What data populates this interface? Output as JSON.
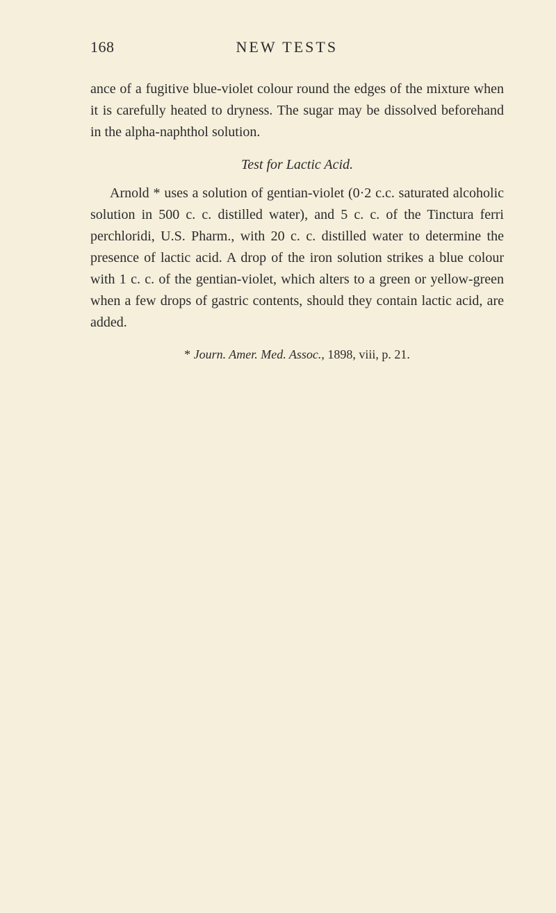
{
  "header": {
    "page_number": "168",
    "title": "NEW TESTS"
  },
  "paragraphs": {
    "p1": "ance of a fugitive blue-violet colour round the edges of the mixture when it is carefully heated to dryness. The sugar may be dissolved beforehand in the alpha-naphthol solution.",
    "section_title": "Test for Lactic Acid.",
    "p2": "Arnold * uses a solution of gentian-violet (0·2 c.c. saturated alcoholic solution in 500 c. c. distilled water), and 5 c. c. of the Tinctura ferri perchloridi, U.S. Pharm., with 20 c. c. distilled water to determine the presence of lactic acid. A drop of the iron solution strikes a blue colour with 1 c. c. of the gentian-violet, which alters to a green or yellow-green when a few drops of gastric contents, should they contain lactic acid, are added."
  },
  "footnote": {
    "marker": "* ",
    "journal": "Journ. Amer. Med. Assoc.",
    "rest": ", 1898, viii, p. 21."
  }
}
